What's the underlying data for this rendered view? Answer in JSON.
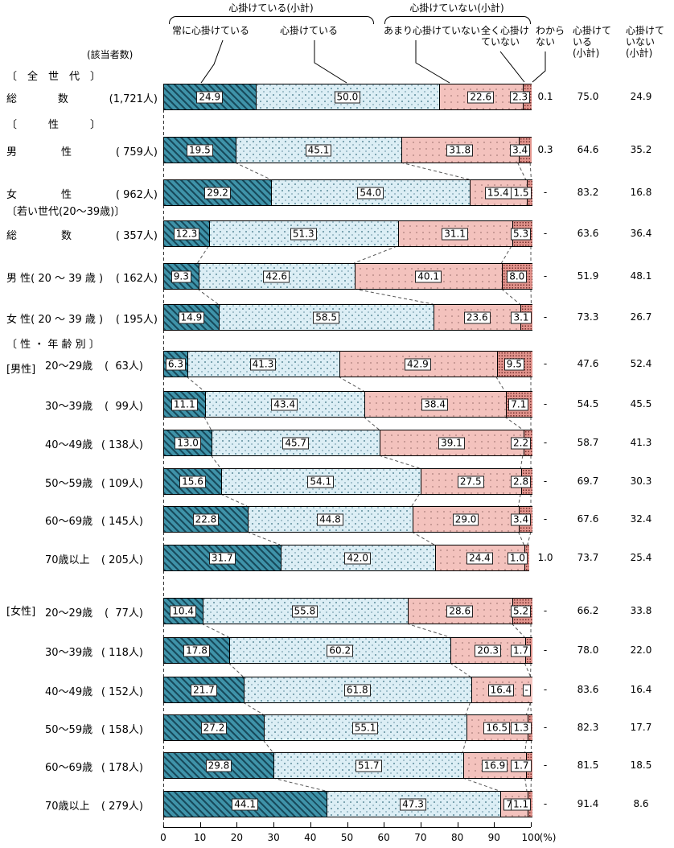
{
  "header": {
    "group_yes_title": "心掛けている(小計)",
    "group_no_title": "心掛けていない(小計)",
    "respondents": "(該当者数)",
    "cat_always": "常に心掛けている",
    "cat_yes": "心掛けている",
    "cat_not_much": "あまり心掛けていない",
    "cat_not_at_all": "全く心掛け\nていない",
    "cat_dk": "わから\nない",
    "col_subtotal_yes": "心掛けて\nいる\n (小計)",
    "col_subtotal_no": "心掛けて\nいない\n (小計)"
  },
  "sections": [
    {
      "text": "〔　全　世　代　〕"
    },
    {
      "text": "〔　　　性　　　〕"
    },
    {
      "text": "〔若い世代(20〜39歳)〕"
    },
    {
      "text": "〔 性 ・ 年 齢 別 〕"
    }
  ],
  "chart_data": {
    "type": "stacked-bar-horizontal",
    "unit": "%",
    "x_axis": {
      "min": 0,
      "max": 100,
      "tick_step": 10,
      "unit_label": "(%)"
    },
    "legend_position": "top",
    "series_names": [
      "常に心掛けている",
      "心掛けている",
      "あまり心掛けていない",
      "全く心掛けていない",
      "わからない"
    ],
    "colors": {
      "seg1": "#3f93a9",
      "seg2": "#dceef5",
      "seg3": "#f3c2bd",
      "seg4": "#e2948d"
    },
    "rows": [
      {
        "label_parts": [
          "総",
          "数"
        ],
        "count": "(1,721人)",
        "indent": false,
        "prefix": "",
        "values": [
          24.9,
          50.0,
          22.6,
          2.3
        ],
        "value_labels": [
          "24.9",
          "50.0",
          "22.6",
          "2.3"
        ],
        "dk": "0.1",
        "yes": "75.0",
        "no": "24.9"
      },
      {
        "label_parts": [
          "男",
          "性"
        ],
        "count": "( 759人)",
        "indent": false,
        "prefix": "",
        "values": [
          19.5,
          45.1,
          31.8,
          3.4
        ],
        "value_labels": [
          "19.5",
          "45.1",
          "31.8",
          "3.4"
        ],
        "dk": "0.3",
        "yes": "64.6",
        "no": "35.2"
      },
      {
        "label_parts": [
          "女",
          "性"
        ],
        "count": "( 962人)",
        "indent": false,
        "prefix": "",
        "values": [
          29.2,
          54.0,
          15.4,
          1.5
        ],
        "value_labels": [
          "29.2",
          "54.0",
          "15.4",
          "1.5"
        ],
        "dk": "-",
        "yes": "83.2",
        "no": "16.8"
      },
      {
        "label_parts": [
          "総",
          "数"
        ],
        "count": "( 357人)",
        "indent": false,
        "prefix": "",
        "values": [
          12.3,
          51.3,
          31.1,
          5.3
        ],
        "value_labels": [
          "12.3",
          "51.3",
          "31.1",
          "5.3"
        ],
        "dk": "-",
        "yes": "63.6",
        "no": "36.4"
      },
      {
        "label_parts": [
          "男 性( 20 〜 39 歳 )"
        ],
        "count": "( 162人)",
        "indent": false,
        "prefix": "",
        "values": [
          9.3,
          42.6,
          40.1,
          8.0
        ],
        "value_labels": [
          "9.3",
          "42.6",
          "40.1",
          "8.0"
        ],
        "dk": "-",
        "yes": "51.9",
        "no": "48.1"
      },
      {
        "label_parts": [
          "女 性( 20 〜 39 歳 )"
        ],
        "count": "( 195人)",
        "indent": false,
        "prefix": "",
        "values": [
          14.9,
          58.5,
          23.6,
          3.1
        ],
        "value_labels": [
          "14.9",
          "58.5",
          "23.6",
          "3.1"
        ],
        "dk": "-",
        "yes": "73.3",
        "no": "26.7"
      },
      {
        "label_parts": [
          "20〜29歳"
        ],
        "count": "(  63人)",
        "indent": true,
        "prefix": "[男性]",
        "values": [
          6.3,
          41.3,
          42.9,
          9.5
        ],
        "value_labels": [
          "6.3",
          "41.3",
          "42.9",
          "9.5"
        ],
        "dk": "-",
        "yes": "47.6",
        "no": "52.4"
      },
      {
        "label_parts": [
          "30〜39歳"
        ],
        "count": "(  99人)",
        "indent": true,
        "prefix": "",
        "values": [
          11.1,
          43.4,
          38.4,
          7.1
        ],
        "value_labels": [
          "11.1",
          "43.4",
          "38.4",
          "7.1"
        ],
        "dk": "-",
        "yes": "54.5",
        "no": "45.5"
      },
      {
        "label_parts": [
          "40〜49歳"
        ],
        "count": "( 138人)",
        "indent": true,
        "prefix": "",
        "values": [
          13.0,
          45.7,
          39.1,
          2.2
        ],
        "value_labels": [
          "13.0",
          "45.7",
          "39.1",
          "2.2"
        ],
        "dk": "-",
        "yes": "58.7",
        "no": "41.3"
      },
      {
        "label_parts": [
          "50〜59歳"
        ],
        "count": "( 109人)",
        "indent": true,
        "prefix": "",
        "values": [
          15.6,
          54.1,
          27.5,
          2.8
        ],
        "value_labels": [
          "15.6",
          "54.1",
          "27.5",
          "2.8"
        ],
        "dk": "-",
        "yes": "69.7",
        "no": "30.3"
      },
      {
        "label_parts": [
          "60〜69歳"
        ],
        "count": "( 145人)",
        "indent": true,
        "prefix": "",
        "values": [
          22.8,
          44.8,
          29.0,
          3.4
        ],
        "value_labels": [
          "22.8",
          "44.8",
          "29.0",
          "3.4"
        ],
        "dk": "-",
        "yes": "67.6",
        "no": "32.4"
      },
      {
        "label_parts": [
          "70歳以上"
        ],
        "count": "( 205人)",
        "indent": true,
        "prefix": "",
        "values": [
          31.7,
          42.0,
          24.4,
          1.0
        ],
        "value_labels": [
          "31.7",
          "42.0",
          "24.4",
          "1.0"
        ],
        "dk": "1.0",
        "yes": "73.7",
        "no": "25.4"
      },
      {
        "label_parts": [
          "20〜29歳"
        ],
        "count": "(  77人)",
        "indent": true,
        "prefix": "[女性]",
        "values": [
          10.4,
          55.8,
          28.6,
          5.2
        ],
        "value_labels": [
          "10.4",
          "55.8",
          "28.6",
          "5.2"
        ],
        "dk": "-",
        "yes": "66.2",
        "no": "33.8"
      },
      {
        "label_parts": [
          "30〜39歳"
        ],
        "count": "( 118人)",
        "indent": true,
        "prefix": "",
        "values": [
          17.8,
          60.2,
          20.3,
          1.7
        ],
        "value_labels": [
          "17.8",
          "60.2",
          "20.3",
          "1.7"
        ],
        "dk": "-",
        "yes": "78.0",
        "no": "22.0"
      },
      {
        "label_parts": [
          "40〜49歳"
        ],
        "count": "( 152人)",
        "indent": true,
        "prefix": "",
        "values": [
          21.7,
          61.8,
          16.4,
          0
        ],
        "value_labels": [
          "21.7",
          "61.8",
          "16.4",
          "-"
        ],
        "dk": "-",
        "yes": "83.6",
        "no": "16.4"
      },
      {
        "label_parts": [
          "50〜59歳"
        ],
        "count": "( 158人)",
        "indent": true,
        "prefix": "",
        "values": [
          27.2,
          55.1,
          16.5,
          1.3
        ],
        "value_labels": [
          "27.2",
          "55.1",
          "16.5",
          "1.3"
        ],
        "dk": "-",
        "yes": "82.3",
        "no": "17.7"
      },
      {
        "label_parts": [
          "60〜69歳"
        ],
        "count": "( 178人)",
        "indent": true,
        "prefix": "",
        "values": [
          29.8,
          51.7,
          16.9,
          1.7
        ],
        "value_labels": [
          "29.8",
          "51.7",
          "16.9",
          "1.7"
        ],
        "dk": "-",
        "yes": "81.5",
        "no": "18.5"
      },
      {
        "label_parts": [
          "70歳以上"
        ],
        "count": "( 279人)",
        "indent": true,
        "prefix": "",
        "values": [
          44.1,
          47.3,
          7.5,
          1.1
        ],
        "value_labels": [
          "44.1",
          "47.3",
          "7.5",
          "1.1"
        ],
        "dk": "-",
        "yes": "91.4",
        "no": "8.6"
      }
    ]
  }
}
